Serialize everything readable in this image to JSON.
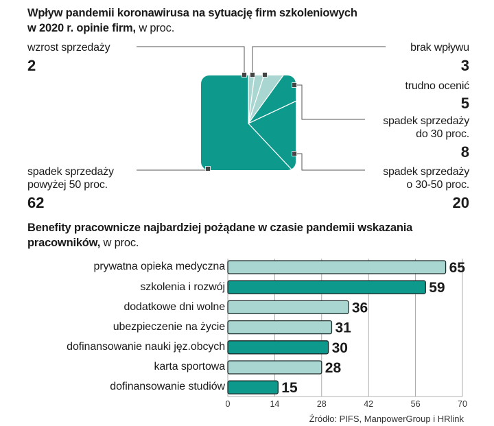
{
  "chart_data": [
    {
      "type": "pie",
      "title": "Wpływ pandemii  koronawirusa na sytuację firm szkoleniowych",
      "title_line2": "w 2020 r. opinie firm,",
      "unit": "w proc.",
      "slices": [
        {
          "label": "spadek sprzedaży powyżej 50 proc.",
          "label_line1": "spadek sprzedaży",
          "label_line2": "powyżej 50 proc.",
          "value": 62
        },
        {
          "label": "wzrost sprzedaży",
          "value": 2
        },
        {
          "label": "brak wpływu",
          "value": 3
        },
        {
          "label": "trudno ocenić",
          "value": 5
        },
        {
          "label": "spadek sprzedaży do 30 proc.",
          "label_line1": "spadek sprzedaży",
          "label_line2": "do 30 proc.",
          "value": 8
        },
        {
          "label": "spadek sprzedaży o 30-50 proc.",
          "label_line1": "spadek sprzedaży",
          "label_line2": "o 30-50 proc.",
          "value": 20
        }
      ],
      "colors": {
        "dark": "#0d9a8c",
        "light": "#a9d6d1",
        "stroke": "#ffffff"
      }
    },
    {
      "type": "bar",
      "orientation": "horizontal",
      "title": "Benefity pracownicze najbardziej pożądane w czasie pandemii wskazania",
      "title_line2": "pracowników,",
      "unit": "w proc.",
      "categories": [
        "prywatna opieka medyczna",
        "szkolenia i rozwój",
        "dodatkowe dni wolne",
        "ubezpieczenie na życie",
        "dofinansowanie nauki jęz.obcych",
        "karta sportowa",
        "dofinansowanie studiów"
      ],
      "values": [
        65,
        59,
        36,
        31,
        30,
        28,
        15
      ],
      "highlight": [
        false,
        true,
        false,
        false,
        true,
        false,
        true
      ],
      "xlim": [
        0,
        70
      ],
      "xticks": [
        0,
        14,
        28,
        42,
        56,
        70
      ],
      "colors": {
        "dark": "#0d9a8c",
        "light": "#a9d6d1",
        "grid": "#9a9a9a"
      }
    }
  ],
  "source": "Źródło: PIFS, ManpowerGroup i HRlink"
}
